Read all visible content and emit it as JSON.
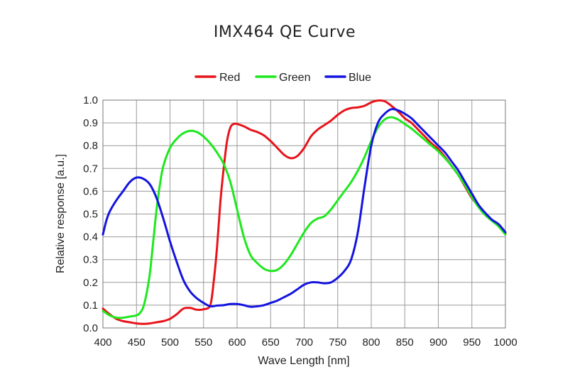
{
  "chart_data": {
    "type": "line",
    "title": "IMX464 QE Curve",
    "xlabel": "Wave Length [nm]",
    "ylabel": "Relative response [a.u.]",
    "xlim": [
      400,
      1000
    ],
    "ylim": [
      0,
      1
    ],
    "grid": true,
    "legend_position": "top-center",
    "x_ticks": [
      "400",
      "450",
      "500",
      "550",
      "600",
      "650",
      "700",
      "750",
      "800",
      "850",
      "900",
      "950",
      "1000"
    ],
    "y_ticks": [
      "0.0",
      "0.1",
      "0.2",
      "0.3",
      "0.4",
      "0.5",
      "0.6",
      "0.7",
      "0.8",
      "0.9",
      "1.0"
    ],
    "series": [
      {
        "name": "Red",
        "color": "#e8141b",
        "x": [
          400,
          410,
          420,
          430,
          440,
          450,
          460,
          470,
          480,
          490,
          500,
          510,
          520,
          530,
          540,
          550,
          560,
          565,
          570,
          575,
          580,
          585,
          590,
          595,
          600,
          610,
          620,
          630,
          640,
          650,
          660,
          670,
          680,
          690,
          700,
          710,
          720,
          730,
          740,
          750,
          760,
          770,
          780,
          790,
          800,
          810,
          820,
          830,
          840,
          850,
          860,
          870,
          880,
          890,
          900,
          910,
          920,
          930,
          940,
          950,
          960,
          970,
          980,
          990,
          1000
        ],
        "values": [
          0.085,
          0.06,
          0.04,
          0.03,
          0.025,
          0.02,
          0.018,
          0.02,
          0.025,
          0.03,
          0.04,
          0.06,
          0.085,
          0.088,
          0.08,
          0.082,
          0.1,
          0.2,
          0.35,
          0.55,
          0.7,
          0.82,
          0.88,
          0.895,
          0.895,
          0.885,
          0.87,
          0.86,
          0.845,
          0.82,
          0.79,
          0.76,
          0.745,
          0.755,
          0.79,
          0.84,
          0.87,
          0.89,
          0.91,
          0.935,
          0.955,
          0.965,
          0.968,
          0.975,
          0.99,
          0.998,
          0.995,
          0.975,
          0.95,
          0.92,
          0.9,
          0.87,
          0.84,
          0.81,
          0.785,
          0.75,
          0.71,
          0.67,
          0.62,
          0.57,
          0.535,
          0.5,
          0.47,
          0.45,
          0.415
        ]
      },
      {
        "name": "Green",
        "color": "#1ee81e",
        "x": [
          400,
          410,
          420,
          430,
          440,
          450,
          455,
          460,
          465,
          470,
          475,
          480,
          485,
          490,
          500,
          510,
          520,
          530,
          540,
          550,
          560,
          570,
          580,
          590,
          600,
          610,
          620,
          630,
          640,
          650,
          660,
          670,
          680,
          690,
          700,
          710,
          720,
          730,
          740,
          750,
          760,
          770,
          780,
          790,
          800,
          810,
          820,
          830,
          840,
          850,
          860,
          870,
          880,
          890,
          900,
          910,
          920,
          930,
          940,
          950,
          960,
          970,
          980,
          990,
          1000
        ],
        "values": [
          0.075,
          0.055,
          0.045,
          0.045,
          0.05,
          0.055,
          0.065,
          0.09,
          0.15,
          0.24,
          0.38,
          0.52,
          0.63,
          0.71,
          0.79,
          0.83,
          0.855,
          0.865,
          0.86,
          0.84,
          0.81,
          0.77,
          0.72,
          0.64,
          0.52,
          0.4,
          0.32,
          0.285,
          0.26,
          0.25,
          0.255,
          0.28,
          0.32,
          0.37,
          0.42,
          0.46,
          0.48,
          0.49,
          0.52,
          0.56,
          0.6,
          0.64,
          0.69,
          0.75,
          0.82,
          0.88,
          0.915,
          0.925,
          0.915,
          0.895,
          0.875,
          0.85,
          0.825,
          0.8,
          0.775,
          0.745,
          0.71,
          0.67,
          0.625,
          0.575,
          0.53,
          0.495,
          0.47,
          0.445,
          0.41
        ]
      },
      {
        "name": "Blue",
        "color": "#1414e0",
        "x": [
          400,
          405,
          410,
          420,
          430,
          440,
          450,
          460,
          470,
          480,
          490,
          500,
          510,
          520,
          530,
          540,
          550,
          560,
          570,
          580,
          590,
          600,
          610,
          620,
          630,
          640,
          650,
          660,
          670,
          680,
          690,
          700,
          710,
          720,
          730,
          740,
          750,
          760,
          770,
          780,
          790,
          800,
          810,
          820,
          830,
          840,
          850,
          860,
          870,
          880,
          890,
          900,
          910,
          920,
          930,
          940,
          950,
          960,
          970,
          980,
          990,
          1000
        ],
        "values": [
          0.41,
          0.47,
          0.51,
          0.56,
          0.6,
          0.64,
          0.66,
          0.655,
          0.63,
          0.57,
          0.48,
          0.38,
          0.29,
          0.21,
          0.16,
          0.13,
          0.11,
          0.095,
          0.098,
          0.1,
          0.105,
          0.105,
          0.1,
          0.093,
          0.095,
          0.1,
          0.11,
          0.12,
          0.135,
          0.15,
          0.17,
          0.19,
          0.2,
          0.2,
          0.196,
          0.2,
          0.22,
          0.25,
          0.3,
          0.42,
          0.62,
          0.8,
          0.9,
          0.94,
          0.96,
          0.955,
          0.94,
          0.92,
          0.89,
          0.86,
          0.83,
          0.8,
          0.77,
          0.73,
          0.69,
          0.64,
          0.59,
          0.54,
          0.505,
          0.475,
          0.455,
          0.42
        ]
      }
    ]
  }
}
